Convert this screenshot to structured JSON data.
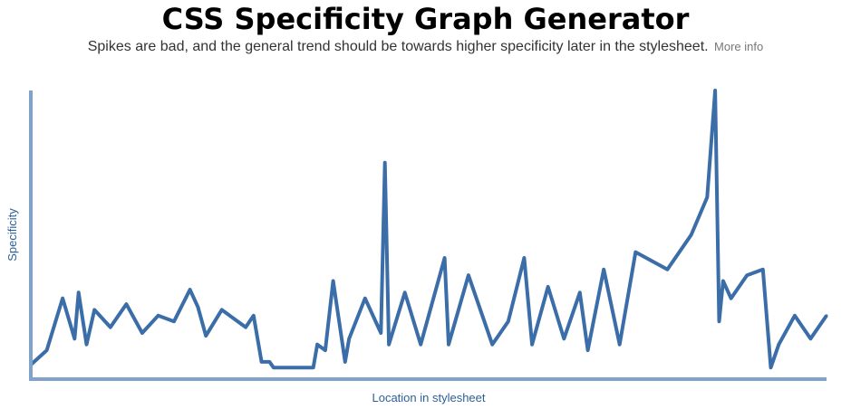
{
  "header": {
    "title": "CSS Specificity Graph Generator",
    "subtitle": "Spikes are bad, and the general trend should be towards higher specificity later in the stylesheet.",
    "more_info_label": "More info"
  },
  "colors": {
    "series": "#3b6ea8",
    "axis": "#7fa3c9",
    "axis_label": "#2c5f98"
  },
  "chart_data": {
    "type": "line",
    "title": "",
    "xlabel": "Location in stylesheet",
    "ylabel": "Specificity",
    "ylim": [
      0,
      100
    ],
    "xlim": [
      0,
      1
    ],
    "grid": false,
    "legend": "none",
    "series": [
      {
        "x": [
          0,
          0.02,
          0.04,
          0.055,
          0.06,
          0.07,
          0.08,
          0.1,
          0.12,
          0.14,
          0.16,
          0.18,
          0.2,
          0.21,
          0.22,
          0.24,
          0.26,
          0.27,
          0.28,
          0.29,
          0.3,
          0.305,
          0.33,
          0.355,
          0.36,
          0.37,
          0.38,
          0.395,
          0.4,
          0.42,
          0.44,
          0.445,
          0.45,
          0.47,
          0.49,
          0.52,
          0.525,
          0.55,
          0.58,
          0.6,
          0.62,
          0.63,
          0.65,
          0.67,
          0.69,
          0.7,
          0.72,
          0.74,
          0.76,
          0.8,
          0.83,
          0.85,
          0.86,
          0.865,
          0.87,
          0.88,
          0.9,
          0.92,
          0.93,
          0.94,
          0.96,
          0.98,
          1.0
        ],
        "y": [
          5,
          10,
          28,
          14,
          30,
          12,
          24,
          18,
          26,
          16,
          22,
          20,
          31,
          25,
          15,
          24,
          20,
          18,
          22,
          6,
          6,
          4,
          4,
          4,
          12,
          10,
          34,
          6,
          14,
          28,
          16,
          75,
          12,
          30,
          12,
          42,
          12,
          36,
          12,
          20,
          42,
          12,
          32,
          14,
          30,
          10,
          38,
          12,
          44,
          38,
          50,
          63,
          100,
          20,
          34,
          28,
          36,
          38,
          4,
          12,
          22,
          14,
          22
        ]
      }
    ]
  }
}
